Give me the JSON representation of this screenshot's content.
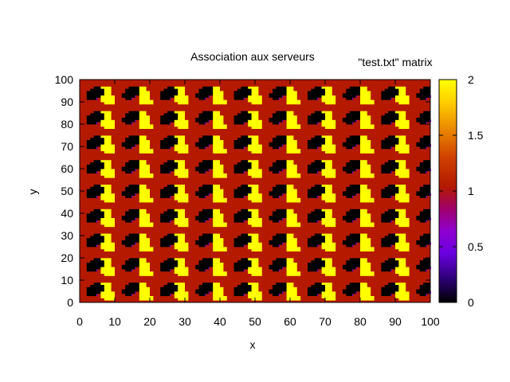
{
  "chart_data": {
    "type": "heatmap",
    "title": "Association aux serveurs",
    "legend_label": "\"test.txt\" matrix",
    "xlabel": "x",
    "ylabel": "y",
    "xlim": [
      0,
      100
    ],
    "ylim": [
      0,
      100
    ],
    "x_ticks": [
      "0",
      "10",
      "20",
      "30",
      "40",
      "50",
      "60",
      "70",
      "80",
      "90",
      "100"
    ],
    "y_ticks": [
      "0",
      "10",
      "20",
      "30",
      "40",
      "50",
      "60",
      "70",
      "80",
      "90",
      "100"
    ],
    "colorbar": {
      "range": [
        0,
        2
      ],
      "ticks": [
        "0",
        "0.5",
        "1",
        "1.5",
        "2"
      ],
      "palette": "gnuplot default (black-purple-red-orange-yellow)",
      "stops": [
        "#000000",
        "#3b00b0",
        "#8800ff",
        "#a0005a",
        "#b51a00",
        "#d84a00",
        "#ee8f00",
        "#ffd900",
        "#ffff00"
      ]
    },
    "grid": false,
    "value_colors": {
      "0": "#000000",
      "1": "#b51a00",
      "2": "#ffff00"
    },
    "pattern": {
      "description": "periodic tiling of server-assignment regions with values 0, 1 and 2",
      "period_x": 10.5,
      "period_y": 11
    }
  }
}
